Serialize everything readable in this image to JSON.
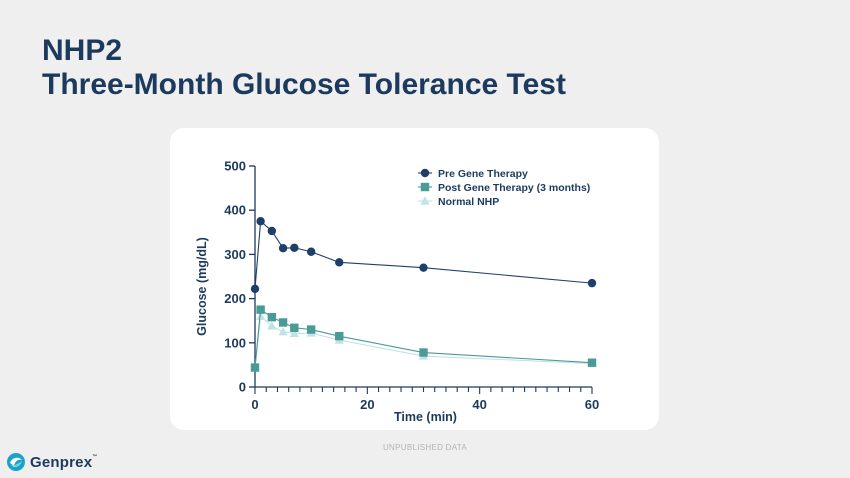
{
  "slide": {
    "title_line1": "NHP2",
    "title_line2": "Three-Month Glucose Tolerance Test",
    "footer_note": "UNPUBLISHED DATA",
    "logo_text": "Genprex",
    "logo_tm": "™"
  },
  "colors": {
    "title": "#1c3a5e",
    "pre": "#1f3f6b",
    "post": "#4a9a96",
    "normal": "#bfe3e6",
    "background": "#efefef",
    "card": "#ffffff",
    "logo_accent": "#1aa3c9"
  },
  "chart_data": {
    "type": "line",
    "title": "",
    "xlabel": "Time (min)",
    "ylabel": "Glucose (mg/dL)",
    "xlim": [
      0,
      60
    ],
    "ylim": [
      0,
      500
    ],
    "xticks": [
      0,
      20,
      40,
      60
    ],
    "yticks": [
      0,
      100,
      200,
      300,
      400,
      500
    ],
    "xminor_step": 2,
    "grid": false,
    "legend": "top-right",
    "series": [
      {
        "name": "Pre Gene Therapy",
        "marker": "circle",
        "color": "#1f3f6b",
        "x": [
          0,
          1,
          3,
          5,
          7,
          10,
          15,
          30,
          60
        ],
        "y": [
          222,
          375,
          353,
          314,
          315,
          306,
          282,
          270,
          235
        ]
      },
      {
        "name": "Post Gene Therapy (3 months)",
        "marker": "square",
        "color": "#4a9a96",
        "x": [
          0,
          1,
          3,
          5,
          7,
          10,
          15,
          30,
          60
        ],
        "y": [
          44,
          175,
          158,
          146,
          134,
          130,
          115,
          78,
          55
        ]
      },
      {
        "name": "Normal NHP",
        "marker": "triangle",
        "color": "#bfe3e6",
        "x": [
          0,
          1,
          3,
          5,
          7,
          10,
          15,
          30,
          60
        ],
        "y": [
          44,
          160,
          138,
          125,
          121,
          122,
          106,
          70,
          53
        ]
      }
    ]
  }
}
